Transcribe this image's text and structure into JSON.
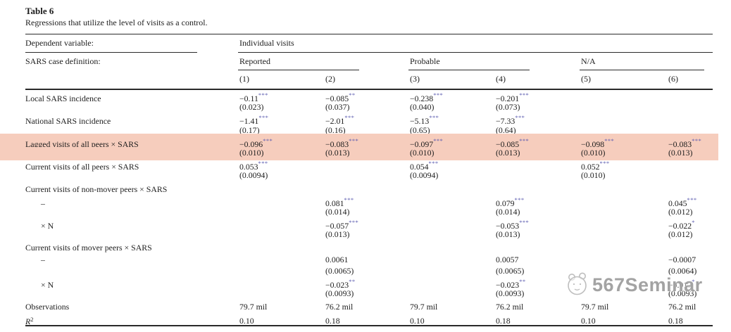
{
  "page": {
    "table_label": "Table 6",
    "caption": "Regressions that utilize the level of visits as a control."
  },
  "header": {
    "dependent_variable_label": "Dependent variable:",
    "dependent_variable_value": "Individual visits",
    "case_definition_label": "SARS case definition:",
    "groups": [
      {
        "label": "Reported"
      },
      {
        "label": "Probable"
      },
      {
        "label": "N/A"
      }
    ],
    "column_numbers": [
      "(1)",
      "(2)",
      "(3)",
      "(4)",
      "(5)",
      "(6)"
    ]
  },
  "colors": {
    "highlight": "#f6cdbd",
    "star": "#5c5cb0",
    "text": "#1d1d1d",
    "watermark": "#8f8f8f"
  },
  "rows": [
    {
      "label": "Local SARS incidence",
      "cells": [
        {
          "t": "−0.11",
          "s": "***"
        },
        {
          "t": "−0.085",
          "s": "**"
        },
        {
          "t": "−0.238",
          "s": "***"
        },
        {
          "t": "−0.201",
          "s": "***"
        },
        "",
        ""
      ]
    },
    {
      "label": "",
      "cells": [
        "(0.023)",
        "(0.037)",
        "(0.040)",
        "(0.073)",
        "",
        ""
      ]
    },
    {
      "label": "National SARS incidence",
      "cells": [
        {
          "t": "−1.41",
          "s": "***"
        },
        {
          "t": "−2.01",
          "s": "***"
        },
        {
          "t": "−5.13",
          "s": "***"
        },
        {
          "t": "−7.33",
          "s": "***"
        },
        "",
        ""
      ]
    },
    {
      "label": "",
      "cells": [
        "(0.17)",
        "(0.16)",
        "(0.65)",
        "(0.64)",
        "",
        ""
      ]
    },
    {
      "label": "Lagged visits of all peers × SARS",
      "hl": true,
      "cells": [
        {
          "t": "−0.096",
          "s": "***"
        },
        {
          "t": "−0.083",
          "s": "***"
        },
        {
          "t": "−0.097",
          "s": "***"
        },
        {
          "t": "−0.085",
          "s": "***"
        },
        {
          "t": "−0.098",
          "s": "***"
        },
        {
          "t": "−0.083",
          "s": "***"
        }
      ]
    },
    {
      "label": "",
      "hl": true,
      "cells": [
        "(0.010)",
        "(0.013)",
        "(0.010)",
        "(0.013)",
        "(0.010)",
        "(0.013)"
      ]
    },
    {
      "label": "Current visits of all peers × SARS",
      "cells": [
        {
          "t": "0.053",
          "s": "***"
        },
        "",
        {
          "t": "0.054",
          "s": "***"
        },
        "",
        {
          "t": "0.052",
          "s": "***"
        },
        ""
      ]
    },
    {
      "label": "",
      "cells": [
        "(0.0094)",
        "",
        "(0.0094)",
        "",
        "(0.010)",
        ""
      ]
    },
    {
      "label": "Current visits of non-mover peers × SARS",
      "gap": true,
      "cells": [
        "",
        "",
        "",
        "",
        "",
        ""
      ]
    },
    {
      "label": "–",
      "indent": true,
      "cells": [
        "",
        {
          "t": "0.081",
          "s": "***"
        },
        "",
        {
          "t": "0.079",
          "s": "***"
        },
        "",
        {
          "t": "0.045",
          "s": "***"
        }
      ]
    },
    {
      "label": "",
      "cells": [
        "",
        "(0.014)",
        "",
        "(0.014)",
        "",
        "(0.012)"
      ]
    },
    {
      "label": "× N",
      "indent": true,
      "cells": [
        "",
        {
          "t": "−0.057",
          "s": "***"
        },
        "",
        {
          "t": "−0.053",
          "s": "***"
        },
        "",
        {
          "t": "−0.022",
          "s": "*"
        }
      ]
    },
    {
      "label": "",
      "cells": [
        "",
        "(0.013)",
        "",
        "(0.013)",
        "",
        "(0.012)"
      ]
    },
    {
      "label": "Current visits of mover peers × SARS",
      "gap": true,
      "cells": [
        "",
        "",
        "",
        "",
        "",
        ""
      ]
    },
    {
      "label": "–",
      "indent": true,
      "cells": [
        "",
        {
          "t": "0.0061"
        },
        "",
        {
          "t": "0.0057"
        },
        "",
        {
          "t": "−0.0007"
        }
      ]
    },
    {
      "label": "",
      "cells": [
        "",
        "(0.0065)",
        "",
        "(0.0065)",
        "",
        "(0.0064)"
      ]
    },
    {
      "label": "× N",
      "indent": true,
      "cells": [
        "",
        {
          "t": "−0.023",
          "s": "**"
        },
        "",
        {
          "t": "−0.023",
          "s": "**"
        },
        "",
        {
          "t": "−0.017",
          "s": "*"
        }
      ]
    },
    {
      "label": "",
      "cells": [
        "",
        "(0.0093)",
        "",
        "(0.0093)",
        "",
        "(0.0093)"
      ]
    },
    {
      "label": "Observations",
      "gap": true,
      "cells": [
        "79.7 mil",
        "76.2 mil",
        "79.7 mil",
        "76.2 mil",
        "79.7 mil",
        "76.2 mil"
      ]
    },
    {
      "label": "R",
      "label_sup": "2",
      "label_italic": true,
      "cells": [
        "0.10",
        "0.18",
        "0.10",
        "0.18",
        "0.10",
        "0.18"
      ]
    }
  ],
  "watermark": {
    "text": "567Seminar",
    "logo": "cartoon-animal-face-logo"
  }
}
